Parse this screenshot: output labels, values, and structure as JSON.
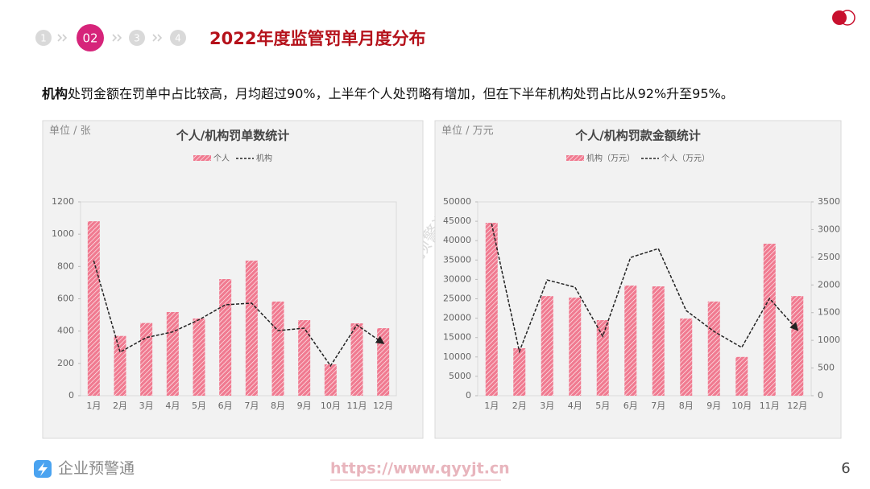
{
  "header": {
    "steps": [
      "1",
      "02",
      "3",
      "4"
    ],
    "active_step": 1,
    "title": "2022年度监管罚单月度分布"
  },
  "intro": {
    "bold": "机构",
    "text": "处罚金额在罚单中占比较高，月均超过90%，上半年个人处罚略有增加，但在下半年机构处罚占比从92%升至95%。"
  },
  "watermark": "企业预警通",
  "footer": {
    "logo": "企业预警通",
    "url": "https://www.qyyjt.cn",
    "page": "6"
  },
  "chart_data": [
    {
      "type": "combo",
      "title": "个人/机构罚单数统计",
      "unit": "单位 / 张",
      "categories": [
        "1月",
        "2月",
        "3月",
        "4月",
        "5月",
        "6月",
        "7月",
        "8月",
        "9月",
        "10月",
        "11月",
        "12月"
      ],
      "series": [
        {
          "name": "个人",
          "type": "bar",
          "color": "#f07a90",
          "values": [
            1080,
            370,
            450,
            518,
            478,
            722,
            836,
            583,
            468,
            194,
            448,
            418
          ]
        },
        {
          "name": "机构",
          "type": "line",
          "color": "#222222",
          "values": [
            836,
            270,
            360,
            395,
            470,
            563,
            573,
            403,
            418,
            185,
            438,
            325
          ]
        }
      ],
      "ylim": [
        0,
        1200
      ],
      "yticks": [
        0,
        200,
        400,
        600,
        800,
        1000,
        1200
      ]
    },
    {
      "type": "combo",
      "title": "个人/机构罚款金额统计",
      "unit": "单位 / 万元",
      "categories": [
        "1月",
        "2月",
        "3月",
        "4月",
        "5月",
        "6月",
        "7月",
        "8月",
        "9月",
        "10月",
        "11月",
        "12月"
      ],
      "series": [
        {
          "name": "机构（万元）",
          "type": "bar",
          "color": "#f07a90",
          "values": [
            44600,
            12240,
            25700,
            25300,
            19500,
            28400,
            28200,
            19900,
            24300,
            10000,
            39200,
            25700
          ]
        },
        {
          "name": "个人（万元）",
          "type": "line",
          "color": "#222222",
          "axis": "y2",
          "values": [
            3107,
            798,
            2090,
            1960,
            1074,
            2496,
            2656,
            1538,
            1161,
            871,
            1756,
            1190
          ]
        }
      ],
      "ylim": [
        0,
        50000
      ],
      "yticks": [
        0,
        5000,
        10000,
        15000,
        20000,
        25000,
        30000,
        35000,
        40000,
        45000,
        50000
      ],
      "y2lim": [
        0,
        3500
      ],
      "y2ticks": [
        0,
        500,
        1000,
        1500,
        2000,
        2500,
        3000,
        3500
      ]
    }
  ]
}
